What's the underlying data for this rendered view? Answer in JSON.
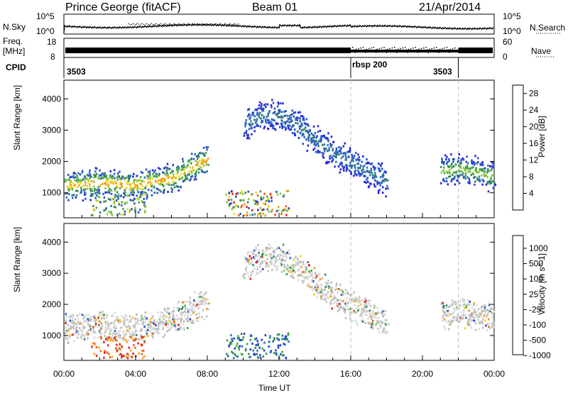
{
  "header": {
    "station": "Prince George (fitACF)",
    "beam": "Beam 01",
    "date": "21/Apr/2014"
  },
  "strip_labels": {
    "nsky": "N.Sky",
    "freq_line1": "Freq.",
    "freq_line2": "[MHz]",
    "cpid": "CPID",
    "nsearch": "N.Search",
    "nave": "Nave",
    "nsky_ticks": [
      "10^5",
      "10^0"
    ],
    "nsearch_ticks": [
      "10^5",
      "10^0"
    ],
    "freq_ticks": [
      "18",
      "8"
    ],
    "nave_ticks": [
      "60",
      "0"
    ]
  },
  "cpid_segments": [
    "3503",
    "rbsp 200",
    "3503"
  ],
  "colors": {
    "power_scale": [
      "#2424e0",
      "#2a52c8",
      "#2f6bb0",
      "#3b8a5a",
      "#4ca44c",
      "#8fc63c",
      "#f2d81e",
      "#f29b1a",
      "#ee5a14",
      "#e21f1f"
    ],
    "velocity_scale": [
      "#1f3fd0",
      "#2f69b8",
      "#2f8a5c",
      "#3ea83e",
      "#8cd24a",
      "#bdbdbd",
      "#d9d9d9",
      "#f4d020",
      "#f29b1a",
      "#e8631c",
      "#e02020"
    ]
  },
  "chart_data": [
    {
      "type": "heatmap",
      "title": "",
      "xlabel": "",
      "ylabel": "Slant Range [km]",
      "xlim": [
        "00:00",
        "24:00"
      ],
      "ylim": [
        200,
        4600
      ],
      "y_ticks": [
        1000,
        2000,
        3000,
        4000
      ],
      "colorbar_label": "Power [dB]",
      "colorbar_ticks": [
        4,
        8,
        12,
        16,
        20,
        24,
        28
      ],
      "colorbar_range": [
        0,
        30
      ],
      "bands": [
        {
          "t": [
            0,
            1,
            2,
            3,
            4,
            5,
            6,
            7,
            8
          ],
          "range": [
            1250,
            1300,
            1350,
            1300,
            1250,
            1400,
            1500,
            1800,
            2100
          ],
          "level": 22
        },
        {
          "t": [
            10,
            11,
            12,
            13,
            14,
            15,
            16,
            17,
            18
          ],
          "range": [
            3200,
            3500,
            3500,
            3200,
            2700,
            2300,
            2000,
            1700,
            1400
          ],
          "level": 8
        },
        {
          "t": [
            21,
            22,
            23,
            24
          ],
          "range": [
            1700,
            1800,
            1700,
            1550
          ],
          "level": 16
        }
      ]
    },
    {
      "type": "heatmap",
      "title": "",
      "xlabel": "Time UT",
      "ylabel": "Slant Range [km]",
      "xlim": [
        "00:00",
        "24:00"
      ],
      "ylim": [
        200,
        4600
      ],
      "x_ticks": [
        "00:00",
        "04:00",
        "08:00",
        "12:00",
        "16:00",
        "20:00",
        "00:00"
      ],
      "y_ticks": [
        1000,
        2000,
        3000,
        4000
      ],
      "colorbar_label": "Velocity [m s^-1]",
      "colorbar_ticks": [
        1000,
        500,
        100,
        25,
        -25,
        -100,
        -500,
        -1000
      ]
    }
  ]
}
